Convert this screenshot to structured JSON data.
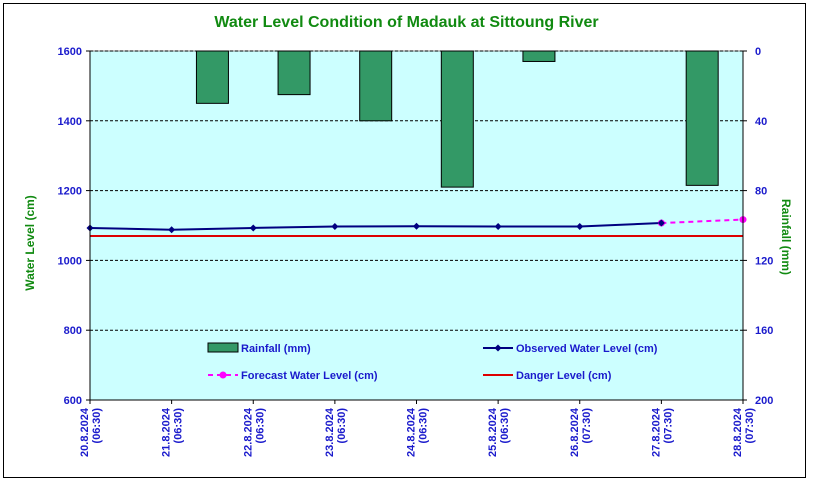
{
  "chart_data": {
    "type": "bar+line",
    "title": "Water Level Condition of Madauk at Sittoung River",
    "ylabel_left": "Water Level (cm)",
    "ylabel_right": "Rainfall (mm)",
    "ylim_left": [
      600,
      1600
    ],
    "yticks_left": [
      600,
      800,
      1000,
      1200,
      1400,
      1600
    ],
    "ylim_right": [
      200,
      0
    ],
    "yticks_right": [
      0,
      40,
      80,
      120,
      160,
      200
    ],
    "categories": [
      "20.8.2024 (06:30)",
      "21.8.2024 (06:30)",
      "22.8.2024 (06:30)",
      "23.8.2024 (06:30)",
      "24.8.2024 (06:30)",
      "25.8.2024 (06:30)",
      "26.8.2024 (07:30)",
      "27.8.2024 (07:30)",
      "28.8.2024 (07:30)"
    ],
    "series": [
      {
        "name": "Rainfall (mm)",
        "kind": "bar",
        "color": "#339966",
        "values": [
          null,
          30,
          25,
          40,
          78,
          6,
          null,
          77,
          null
        ]
      },
      {
        "name": "Observed Water Level (cm)",
        "kind": "line",
        "color": "#000080",
        "values": [
          1093,
          1088,
          1093,
          1097,
          1098,
          1097,
          1097,
          1107,
          null
        ]
      },
      {
        "name": "Forecast Water Level (cm)",
        "kind": "dashed-line",
        "color": "#ff00ff",
        "values": [
          null,
          null,
          null,
          null,
          null,
          null,
          null,
          1107,
          1117
        ]
      },
      {
        "name": "Danger Level (cm)",
        "kind": "line",
        "color": "#dd0000",
        "values": [
          1070,
          1070,
          1070,
          1070,
          1070,
          1070,
          1070,
          1070,
          1070
        ]
      }
    ],
    "grid": true,
    "plot_background": "#ccffff",
    "legend_placement": "inside-bottom"
  }
}
